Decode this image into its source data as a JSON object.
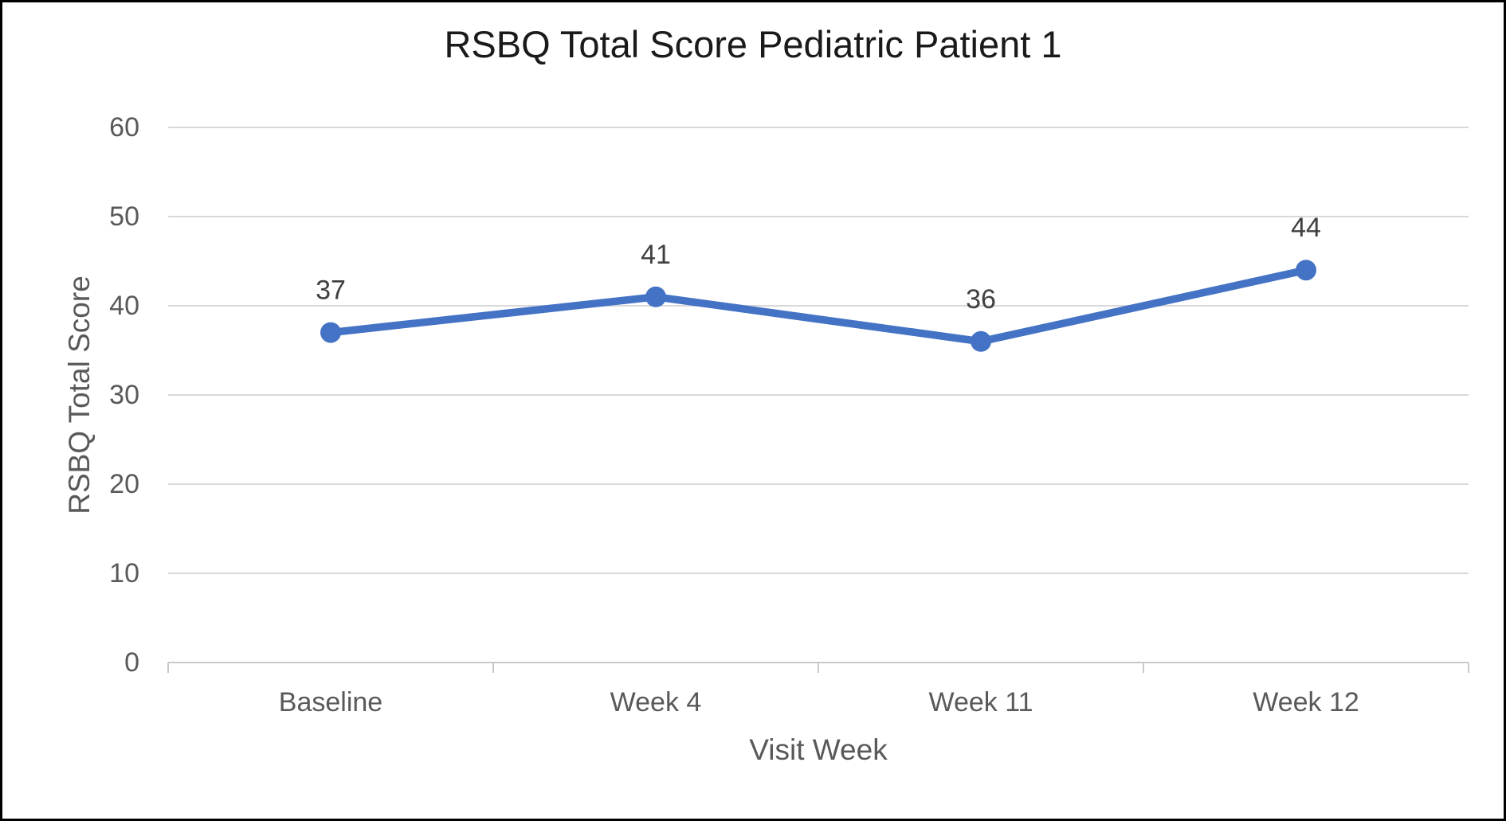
{
  "chart_data": {
    "type": "line",
    "title": "RSBQ Total Score Pediatric Patient 1",
    "xlabel": "Visit Week",
    "ylabel": "RSBQ Total Score",
    "categories": [
      "Baseline",
      "Week 4",
      "Week 11",
      "Week 12"
    ],
    "values": [
      37,
      41,
      36,
      44
    ],
    "data_labels": [
      "37",
      "41",
      "36",
      "44"
    ],
    "ylim": [
      0,
      60
    ],
    "yticks": [
      0,
      10,
      20,
      30,
      40,
      50,
      60
    ],
    "grid": "horizontal",
    "legend": "none",
    "marker": "circle",
    "colors": {
      "line": "#4472C4",
      "marker": "#4472C4",
      "gridline": "#D9D9D9",
      "axis_line": "#C9C9C9",
      "tick_label": "#595959",
      "axis_title": "#595959",
      "data_label": "#404040",
      "title": "#1A1A1A",
      "border": "#000000",
      "background": "#FFFFFF"
    }
  }
}
